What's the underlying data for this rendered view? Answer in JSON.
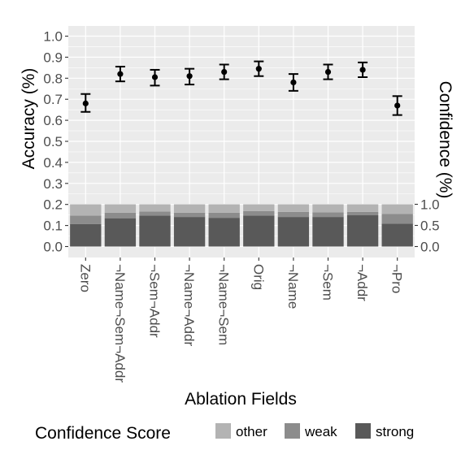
{
  "chart_data": {
    "type": "scatter",
    "xlabel": "Ablation Fields",
    "ylabel": "Accuracy (%)",
    "y2label": "Confidence (%)",
    "categories": [
      "Zero",
      "¬Name¬Sem¬Addr",
      "¬Sem¬Addr",
      "¬Name¬Addr",
      "¬Name¬Sem",
      "Orig",
      "¬Name",
      "¬Sem",
      "¬Addr",
      "¬Pro"
    ],
    "accuracy": {
      "values": [
        0.68,
        0.82,
        0.805,
        0.81,
        0.83,
        0.845,
        0.78,
        0.83,
        0.84,
        0.67
      ],
      "error_low": [
        0.64,
        0.785,
        0.765,
        0.77,
        0.795,
        0.81,
        0.74,
        0.795,
        0.805,
        0.625
      ],
      "error_high": [
        0.725,
        0.855,
        0.84,
        0.845,
        0.865,
        0.88,
        0.82,
        0.865,
        0.875,
        0.715
      ]
    },
    "confidence": {
      "strong": [
        0.53,
        0.67,
        0.73,
        0.7,
        0.68,
        0.73,
        0.7,
        0.7,
        0.74,
        0.54
      ],
      "weak": [
        0.2,
        0.13,
        0.1,
        0.1,
        0.12,
        0.11,
        0.12,
        0.11,
        0.08,
        0.23
      ],
      "other": [
        0.27,
        0.2,
        0.17,
        0.2,
        0.2,
        0.16,
        0.18,
        0.19,
        0.18,
        0.23
      ]
    },
    "ylim": [
      0.0,
      1.0
    ],
    "y_ticks": [
      "0.0",
      "0.1",
      "0.2",
      "0.3",
      "0.4",
      "0.5",
      "0.6",
      "0.7",
      "0.8",
      "0.9",
      "1.0"
    ],
    "y2lim": [
      0.0,
      1.0
    ],
    "y2_ticks": [
      "0.0",
      "0.5",
      "1.0"
    ],
    "grid": true,
    "legend": {
      "title": "Confidence Score",
      "position": "bottom",
      "items": [
        {
          "label": "other",
          "color": "#b3b3b3"
        },
        {
          "label": "weak",
          "color": "#8c8c8c"
        },
        {
          "label": "strong",
          "color": "#595959"
        }
      ]
    },
    "colors": {
      "panel_background": "#ebebeb",
      "gridline": "#ffffff",
      "point": "#000000",
      "strong": "#595959",
      "weak": "#8c8c8c",
      "other": "#b3b3b3"
    }
  }
}
